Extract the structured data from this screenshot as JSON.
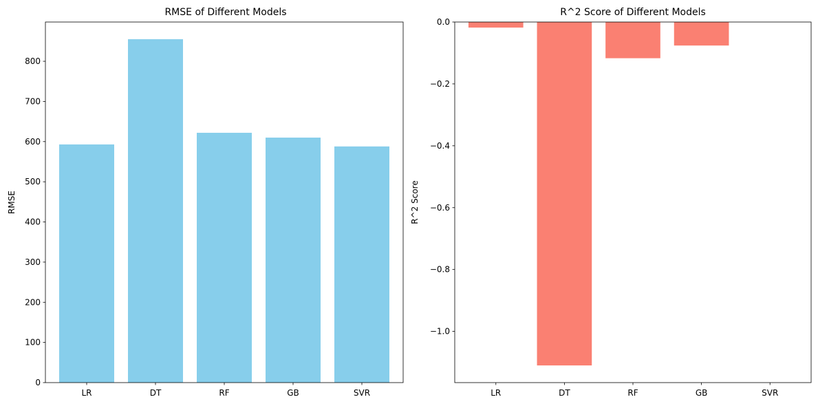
{
  "chart_data": [
    {
      "type": "bar",
      "title": "RMSE of Different Models",
      "xlabel": "",
      "ylabel": "RMSE",
      "categories": [
        "LR",
        "DT",
        "RF",
        "GB",
        "SVR"
      ],
      "values": [
        593,
        855,
        622,
        610,
        588
      ],
      "ylim": [
        0,
        897.75
      ],
      "yticks": [
        0,
        100,
        200,
        300,
        400,
        500,
        600,
        700,
        800
      ],
      "ytick_labels": [
        "0",
        "100",
        "200",
        "300",
        "400",
        "500",
        "600",
        "700",
        "800"
      ],
      "bar_color": "#87ceeb",
      "grid": false
    },
    {
      "type": "bar",
      "title": "R^2 Score of Different Models",
      "xlabel": "",
      "ylabel": "R^2 Score",
      "categories": [
        "LR",
        "DT",
        "RF",
        "GB",
        "SVR"
      ],
      "values": [
        -0.018,
        -1.11,
        -0.117,
        -0.076,
        0.0
      ],
      "ylim": [
        -1.1655,
        0.0
      ],
      "yticks": [
        0.0,
        -0.2,
        -0.4,
        -0.6,
        -0.8,
        -1.0
      ],
      "ytick_labels": [
        "0.0",
        "−0.2",
        "−0.4",
        "−0.6",
        "−0.8",
        "−1.0"
      ],
      "bar_color": "#fa8072",
      "grid": false
    }
  ]
}
